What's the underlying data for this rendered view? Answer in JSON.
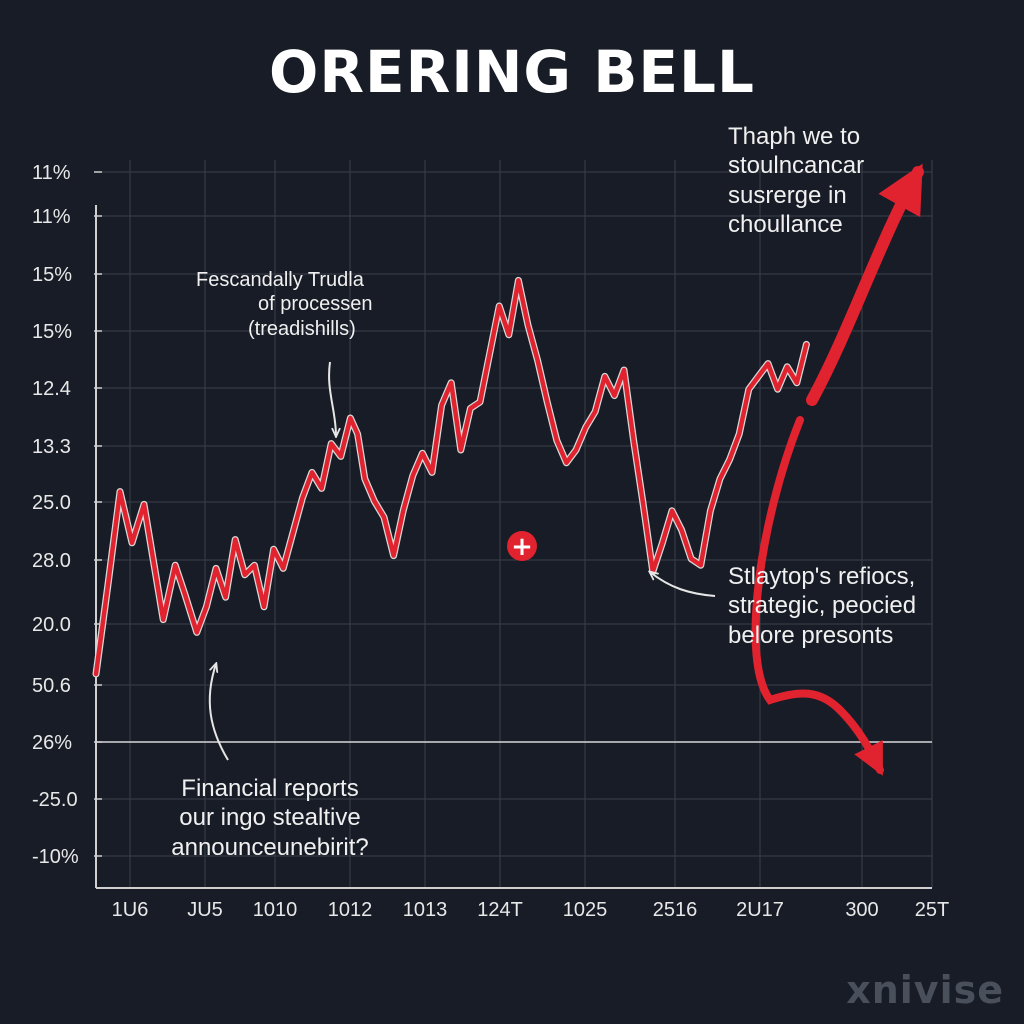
{
  "header": {
    "title": "ORERING BELL"
  },
  "annotations": {
    "top_left": [
      "Fescandally Trudla",
      "of processen",
      "(treadishills)"
    ],
    "top_right": [
      "Thaph we to",
      "stoulncancar",
      "susrerge in",
      "choullance"
    ],
    "mid_right": [
      "Stlaytop's refiocs,",
      "strategic, peocied",
      "belore presonts"
    ],
    "bottom_left": [
      "Financial reports",
      "our ingo stealtive",
      "announceunebirit?"
    ]
  },
  "watermark": "xnivise",
  "chart_data": {
    "type": "line",
    "title": "ORERING BELL",
    "xlabel": "",
    "ylabel": "",
    "x_tick_labels": [
      "1U6",
      "JU5",
      "1010",
      "1012",
      "1013",
      "124T",
      "1025",
      "2516",
      "2U17",
      "300",
      "25T"
    ],
    "y_tick_labels": [
      "11%",
      "11%",
      "15%",
      "15%",
      "12.4",
      "13.3",
      "25.0",
      "28.0",
      "20.0",
      "50.6",
      "26%",
      "-25.0",
      "-10%"
    ],
    "grid": true,
    "series": [
      {
        "color": "#e0232e",
        "values": [
          [
            0.0,
            0.5
          ],
          [
            0.05,
            3.3
          ],
          [
            0.1,
            6.2
          ],
          [
            0.15,
            4.6
          ],
          [
            0.2,
            5.8
          ],
          [
            0.24,
            4.0
          ],
          [
            0.28,
            2.2
          ],
          [
            0.33,
            3.9
          ],
          [
            0.37,
            3.0
          ],
          [
            0.42,
            1.8
          ],
          [
            0.46,
            2.6
          ],
          [
            0.5,
            3.8
          ],
          [
            0.54,
            2.9
          ],
          [
            0.58,
            4.7
          ],
          [
            0.62,
            3.6
          ],
          [
            0.66,
            3.9
          ],
          [
            0.7,
            2.6
          ],
          [
            0.74,
            4.4
          ],
          [
            0.78,
            3.8
          ],
          [
            0.82,
            4.9
          ],
          [
            0.86,
            6.0
          ],
          [
            0.9,
            6.8
          ],
          [
            0.94,
            6.3
          ],
          [
            0.98,
            7.7
          ],
          [
            1.02,
            7.3
          ],
          [
            1.06,
            8.5
          ],
          [
            1.09,
            8.0
          ],
          [
            1.12,
            6.6
          ],
          [
            1.16,
            5.9
          ],
          [
            1.2,
            5.4
          ],
          [
            1.24,
            4.2
          ],
          [
            1.28,
            5.6
          ],
          [
            1.32,
            6.7
          ],
          [
            1.36,
            7.4
          ],
          [
            1.4,
            6.8
          ],
          [
            1.44,
            8.9
          ],
          [
            1.48,
            9.6
          ],
          [
            1.52,
            7.5
          ],
          [
            1.56,
            8.8
          ],
          [
            1.6,
            9.0
          ],
          [
            1.64,
            10.5
          ],
          [
            1.68,
            12.0
          ],
          [
            1.72,
            11.1
          ],
          [
            1.76,
            12.8
          ],
          [
            1.8,
            11.4
          ],
          [
            1.84,
            10.3
          ],
          [
            1.88,
            9.0
          ],
          [
            1.92,
            7.8
          ],
          [
            1.96,
            7.1
          ],
          [
            2.0,
            7.5
          ],
          [
            2.04,
            8.2
          ],
          [
            2.08,
            8.7
          ],
          [
            2.12,
            9.8
          ],
          [
            2.16,
            9.2
          ],
          [
            2.2,
            10.0
          ],
          [
            2.24,
            7.8
          ],
          [
            2.28,
            5.8
          ],
          [
            2.32,
            3.7
          ],
          [
            2.36,
            4.6
          ],
          [
            2.4,
            5.6
          ],
          [
            2.44,
            5.0
          ],
          [
            2.48,
            4.1
          ],
          [
            2.52,
            3.9
          ],
          [
            2.56,
            5.6
          ],
          [
            2.6,
            6.6
          ],
          [
            2.64,
            7.2
          ],
          [
            2.68,
            8.0
          ],
          [
            2.72,
            9.4
          ],
          [
            2.76,
            9.8
          ],
          [
            2.8,
            10.2
          ],
          [
            2.84,
            9.4
          ],
          [
            2.88,
            10.1
          ],
          [
            2.92,
            9.6
          ],
          [
            2.96,
            10.8
          ]
        ]
      }
    ],
    "trend_arrows": [
      {
        "color": "#e0232e",
        "direction": "up",
        "label": "top_right"
      },
      {
        "color": "#e0232e",
        "direction": "down",
        "label": "mid_right"
      }
    ],
    "marker": {
      "symbol": "+",
      "color": "#e0232e"
    }
  }
}
